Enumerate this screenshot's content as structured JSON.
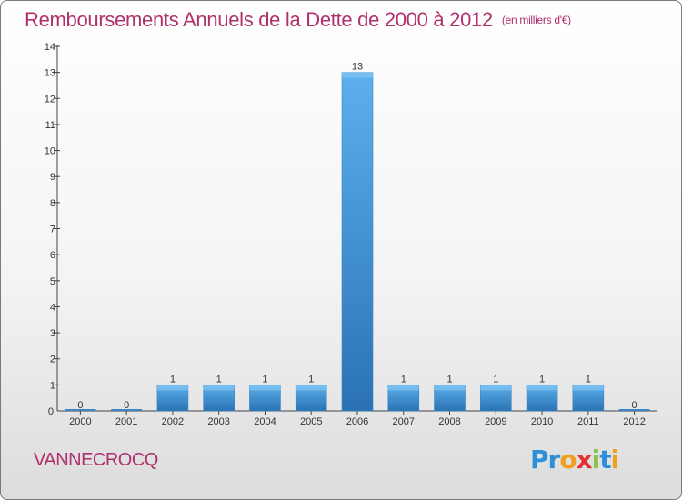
{
  "title": "Remboursements Annuels de la Dette de 2000 à 2012",
  "unit": "(en milliers d'€)",
  "commune": "VANNECROCQ",
  "logo": {
    "letters": [
      "P",
      "r",
      "o",
      "x",
      "i",
      "t",
      "i"
    ],
    "colors": [
      "#2d8fd8",
      "#2d8fd8",
      "#f0a020",
      "#e03030",
      "#8bc34a",
      "#2d8fd8",
      "#f0a020"
    ]
  },
  "colors": {
    "accent": "#b0306c",
    "bar_light": "#5aa8e6",
    "bar_dark": "#2a72b4",
    "axis": "#333333"
  },
  "chart_data": {
    "type": "bar",
    "title": "Remboursements Annuels de la Dette de 2000 à 2012",
    "xlabel": "",
    "ylabel": "",
    "categories": [
      "2000",
      "2001",
      "2002",
      "2003",
      "2004",
      "2005",
      "2006",
      "2007",
      "2008",
      "2009",
      "2010",
      "2011",
      "2012"
    ],
    "values": [
      0,
      0,
      1,
      1,
      1,
      1,
      13,
      1,
      1,
      1,
      1,
      1,
      0
    ],
    "data_labels": [
      "0",
      "0",
      "1",
      "1",
      "1",
      "1",
      "13",
      "1",
      "1",
      "1",
      "1",
      "1",
      "0"
    ],
    "yticks": [
      1,
      2,
      3,
      4,
      5,
      6,
      7,
      8,
      9,
      10,
      11,
      12,
      13,
      14
    ],
    "ylim": [
      0,
      14
    ],
    "grid": false
  }
}
